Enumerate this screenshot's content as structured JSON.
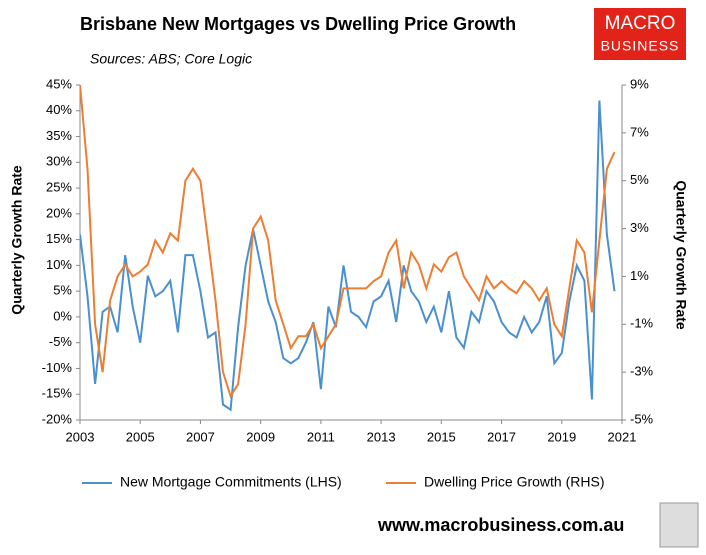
{
  "chart_data": {
    "type": "line",
    "title": "Brisbane New Mortgages vs Dwelling Price Growth",
    "subtitle": "Sources: ABS; Core Logic",
    "y_label": "Quarterly  Growth Rate",
    "y2_label": "Quarterly Growth Rate",
    "x": [
      2003,
      2003.25,
      2003.5,
      2003.75,
      2004,
      2004.25,
      2004.5,
      2004.75,
      2005,
      2005.25,
      2005.5,
      2005.75,
      2006,
      2006.25,
      2006.5,
      2006.75,
      2007,
      2007.25,
      2007.5,
      2007.75,
      2008,
      2008.25,
      2008.5,
      2008.75,
      2009,
      2009.25,
      2009.5,
      2009.75,
      2010,
      2010.25,
      2010.5,
      2010.75,
      2011,
      2011.25,
      2011.5,
      2011.75,
      2012,
      2012.25,
      2012.5,
      2012.75,
      2013,
      2013.25,
      2013.5,
      2013.75,
      2014,
      2014.25,
      2014.5,
      2014.75,
      2015,
      2015.25,
      2015.5,
      2015.75,
      2016,
      2016.25,
      2016.5,
      2016.75,
      2017,
      2017.25,
      2017.5,
      2017.75,
      2018,
      2018.25,
      2018.5,
      2018.75,
      2019,
      2019.25,
      2019.5,
      2019.75,
      2020,
      2020.25,
      2020.5,
      2020.75
    ],
    "xlim": [
      2003,
      2021
    ],
    "xticks": [
      2003,
      2005,
      2007,
      2009,
      2011,
      2013,
      2015,
      2017,
      2019,
      2021
    ],
    "ylim": [
      -20,
      45
    ],
    "yticks": [
      {
        "value": -20,
        "label": "-20%"
      },
      {
        "value": -15,
        "label": "-15%"
      },
      {
        "value": -10,
        "label": "-10%"
      },
      {
        "value": -5,
        "label": "-5%"
      },
      {
        "value": 0,
        "label": "0%"
      },
      {
        "value": 5,
        "label": "5%"
      },
      {
        "value": 10,
        "label": "10%"
      },
      {
        "value": 15,
        "label": "15%"
      },
      {
        "value": 20,
        "label": "20%"
      },
      {
        "value": 25,
        "label": "25%"
      },
      {
        "value": 30,
        "label": "30%"
      },
      {
        "value": 35,
        "label": "35%"
      },
      {
        "value": 40,
        "label": "40%"
      },
      {
        "value": 45,
        "label": "45%"
      }
    ],
    "y2lim": [
      -5,
      9
    ],
    "y2ticks": [
      {
        "value": -5,
        "label": "-5%"
      },
      {
        "value": -3,
        "label": "-3%"
      },
      {
        "value": -1,
        "label": "-1%"
      },
      {
        "value": 1,
        "label": "1%"
      },
      {
        "value": 3,
        "label": "3%"
      },
      {
        "value": 5,
        "label": "5%"
      },
      {
        "value": 7,
        "label": "7%"
      },
      {
        "value": 9,
        "label": "9%"
      }
    ],
    "grid": false,
    "series": [
      {
        "name": "New Mortgage Commitments (LHS)",
        "color": "#4a90d0",
        "values": [
          16,
          4,
          -13,
          1,
          2,
          -3,
          12,
          2,
          -5,
          8,
          4,
          5,
          7,
          -3,
          12,
          12,
          5,
          -4,
          -3,
          -17,
          -18,
          -2,
          10,
          17,
          10,
          3,
          -1,
          -8,
          -9,
          -8,
          -5,
          -1,
          -14,
          2,
          -2,
          10,
          1,
          0,
          -2,
          3,
          4,
          7,
          -1,
          10,
          5,
          3,
          -1,
          2,
          -3,
          5,
          -4,
          -6,
          1,
          -1,
          5,
          3,
          -1,
          -3,
          -4,
          0,
          -3,
          -1,
          4,
          -9,
          -7,
          3,
          10,
          7,
          -16,
          42,
          16,
          5
        ]
      },
      {
        "name": "Dwelling Price Growth (RHS)",
        "color": "#ed7d31",
        "axis": "y2",
        "values": [
          9,
          5.5,
          -1,
          -3,
          0,
          1,
          1.5,
          1,
          1.2,
          1.5,
          2.5,
          2,
          2.8,
          2.5,
          5,
          5.5,
          5,
          2.5,
          0,
          -3,
          -4,
          -3.5,
          -1,
          3,
          3.5,
          2.5,
          0,
          -1,
          -2,
          -1.5,
          -1.5,
          -1,
          -2,
          -1.5,
          -1,
          0.5,
          0.5,
          0.5,
          0.5,
          0.8,
          1,
          2,
          2.5,
          0.5,
          2,
          1.5,
          0.5,
          1.5,
          1.2,
          1.8,
          2,
          1,
          0.5,
          0,
          1,
          0.5,
          0.8,
          0.5,
          0.3,
          0.8,
          0.5,
          0,
          0.5,
          -1,
          -1.5,
          0.5,
          2.5,
          2,
          -0.5,
          2.5,
          5.5,
          6.2
        ]
      }
    ]
  },
  "branding": {
    "logo": [
      "MACRO",
      "BUSINESS"
    ],
    "url": "www.macrobusiness.com.au"
  }
}
